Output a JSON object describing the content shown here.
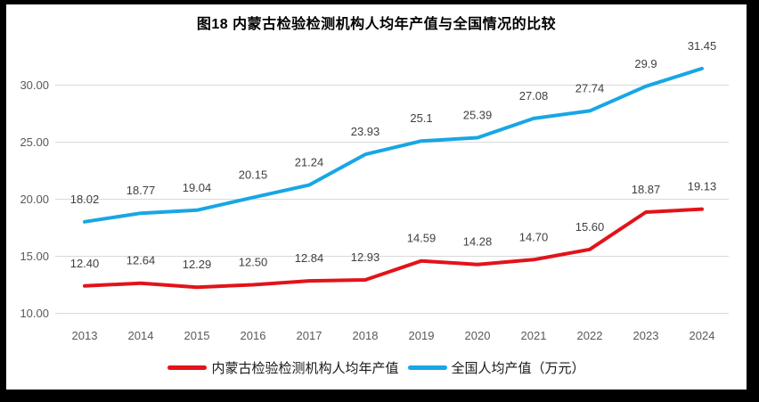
{
  "frame": {
    "background": "#000000",
    "surface_background": "#ffffff"
  },
  "chart_data": {
    "type": "line",
    "title": "图18  内蒙古检验检测机构人均年产值与全国情况的比较",
    "categories": [
      "2013",
      "2014",
      "2015",
      "2016",
      "2017",
      "2018",
      "2019",
      "2020",
      "2021",
      "2022",
      "2023",
      "2024"
    ],
    "series": [
      {
        "name": "内蒙古检验检测机构人均年产值",
        "color": "#e2131a",
        "values": [
          12.4,
          12.64,
          12.29,
          12.5,
          12.84,
          12.93,
          14.59,
          14.28,
          14.7,
          15.6,
          18.87,
          19.13
        ],
        "labels": [
          "12.40",
          "12.64",
          "12.29",
          "12.50",
          "12.84",
          "12.93",
          "14.59",
          "14.28",
          "14.70",
          "15.60",
          "18.87",
          "19.13"
        ]
      },
      {
        "name": "全国人均产值（万元）",
        "color": "#18a6e4",
        "values": [
          18.02,
          18.77,
          19.04,
          20.15,
          21.24,
          23.93,
          25.1,
          25.39,
          27.08,
          27.74,
          29.9,
          31.45
        ],
        "labels": [
          "18.02",
          "18.77",
          "19.04",
          "20.15",
          "21.24",
          "23.93",
          "25.1",
          "25.39",
          "27.08",
          "27.74",
          "29.9",
          "31.45"
        ]
      }
    ],
    "y_axis": {
      "min": 10,
      "max": 30,
      "tick_step": 5,
      "tick_labels": [
        "10.00",
        "15.00",
        "20.00",
        "25.00",
        "30.00"
      ]
    },
    "x_axis": {
      "label": ""
    },
    "grid": true,
    "legend_position": "bottom",
    "colors": {
      "gridline": "#d9d9d9",
      "tick_text": "#595959",
      "data_label_text": "#3f3f3f",
      "title_text": "#000000",
      "legend_text": "#1a1a1a"
    }
  }
}
